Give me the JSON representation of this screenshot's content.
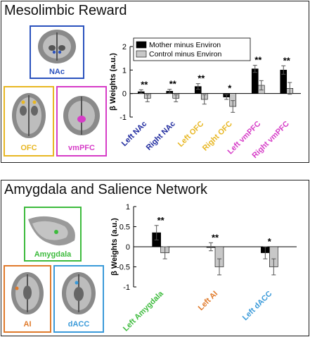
{
  "panels": [
    {
      "title": "Mesolimbic Reward",
      "regions": [
        {
          "label": "NAc",
          "color": "#2a52be"
        },
        {
          "label": "OFC",
          "color": "#e8b723"
        },
        {
          "label": "vmPFC",
          "color": "#d63cc7"
        }
      ]
    },
    {
      "title": "Amygdala and Salience Network",
      "regions": [
        {
          "label": "Amygdala",
          "color": "#3dbb3d"
        },
        {
          "label": "AI",
          "color": "#e07a2b"
        },
        {
          "label": "dACC",
          "color": "#3a9ad9"
        }
      ]
    }
  ],
  "chart_data": [
    {
      "type": "bar",
      "ylabel": "β Weights (a.u.)",
      "ylim": [
        -1,
        2
      ],
      "yticks": [
        -1,
        0,
        1,
        2
      ],
      "legend": "top",
      "categories": [
        "Left NAc",
        "Right NAc",
        "Left OFC",
        "Right OFC",
        "Left vmPFC",
        "Right vmPFC"
      ],
      "category_colors": [
        "#1f2a9e",
        "#1f2a9e",
        "#e8b723",
        "#e8b723",
        "#d63cc7",
        "#d63cc7"
      ],
      "series": [
        {
          "name": "Mother minus Environ",
          "color": "#000000",
          "values": [
            0.08,
            0.1,
            0.3,
            -0.15,
            1.05,
            1.0
          ],
          "errors": [
            0.08,
            0.08,
            0.12,
            0.1,
            0.15,
            0.18
          ]
        },
        {
          "name": "Control minus Environ",
          "color": "#c8c8c8",
          "values": [
            -0.2,
            -0.2,
            -0.25,
            -0.55,
            0.35,
            0.22
          ],
          "errors": [
            0.15,
            0.15,
            0.2,
            0.25,
            0.2,
            0.25
          ]
        }
      ],
      "significance": [
        "**",
        "**",
        "**",
        "*",
        "**",
        "**"
      ]
    },
    {
      "type": "bar",
      "ylabel": "β Weights (a.u.)",
      "ylim": [
        -1,
        1
      ],
      "yticks": [
        -1,
        -0.5,
        0,
        0.5,
        1
      ],
      "categories": [
        "Left Amygdala",
        "Left AI",
        "Left dACC"
      ],
      "category_colors": [
        "#3dbb3d",
        "#e07a2b",
        "#3a9ad9"
      ],
      "series": [
        {
          "name": "Mother minus Environ",
          "color": "#000000",
          "values": [
            0.35,
            0.0,
            -0.15
          ],
          "errors": [
            0.18,
            0.1,
            0.15
          ]
        },
        {
          "name": "Control minus Environ",
          "color": "#c8c8c8",
          "values": [
            -0.15,
            -0.5,
            -0.5
          ],
          "errors": [
            0.15,
            0.2,
            0.2
          ]
        }
      ],
      "significance": [
        "**",
        "**",
        "*"
      ]
    }
  ]
}
